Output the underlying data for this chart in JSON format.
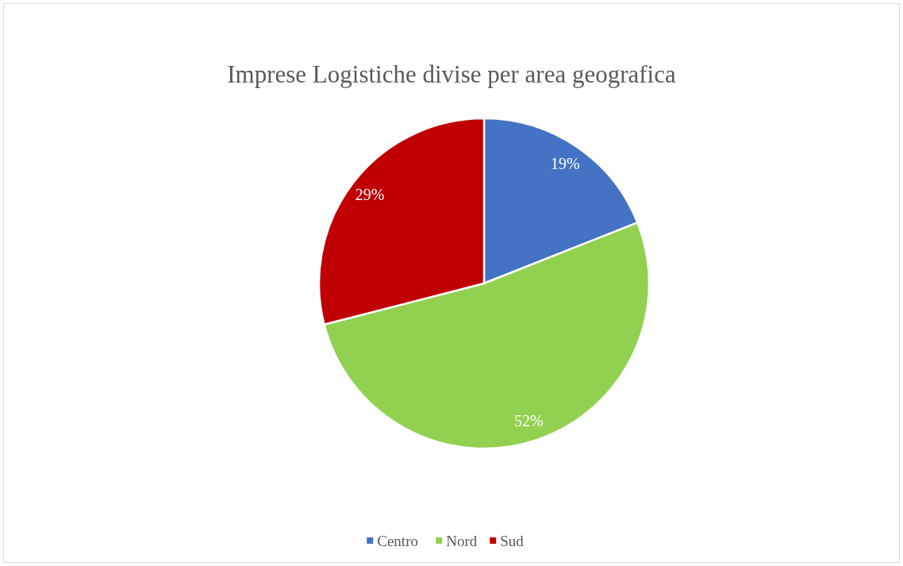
{
  "chart_data": {
    "type": "pie",
    "title": "Imprese Logistiche divise per area geografica",
    "categories": [
      "Centro",
      "Nord",
      "Sud"
    ],
    "values": [
      19,
      52,
      29
    ],
    "colors": [
      "#4472c4",
      "#92d050",
      "#c00000"
    ],
    "value_labels": [
      "19%",
      "52%",
      "29%"
    ],
    "legend": "bottom"
  }
}
